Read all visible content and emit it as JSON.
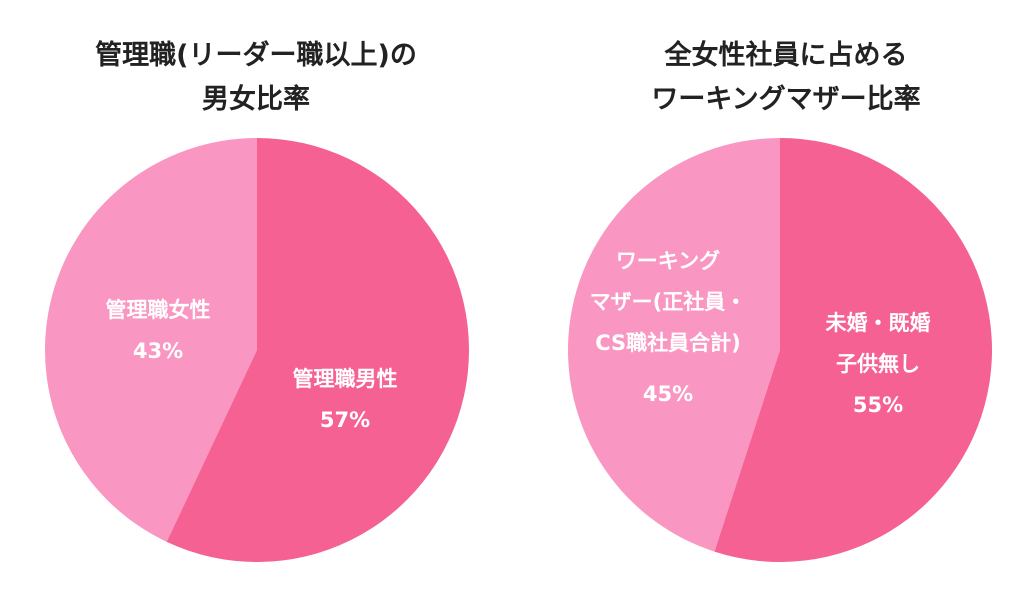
{
  "colors": {
    "female_slice": "#f997c2",
    "male_slice": "#f46192",
    "title_text": "#222222",
    "label_text": "#ffffff"
  },
  "chart_data": [
    {
      "type": "pie",
      "title_lines": [
        "管理職(リーダー職以上)の",
        "男女比率"
      ],
      "slices": [
        {
          "label_lines": [
            "管理職女性"
          ],
          "value_text": "43%",
          "value": 43,
          "color": "#f997c2"
        },
        {
          "label_lines": [
            "管理職男性"
          ],
          "value_text": "57%",
          "value": 57,
          "color": "#f46192"
        }
      ]
    },
    {
      "type": "pie",
      "title_lines": [
        "全女性社員に占める",
        "ワーキングマザー比率"
      ],
      "slices": [
        {
          "label_lines": [
            "ワーキング",
            "マザー(正社員・",
            "CS職社員合計)"
          ],
          "value_text": "45%",
          "value": 45,
          "color": "#f997c2"
        },
        {
          "label_lines": [
            "未婚・既婚",
            "子供無し"
          ],
          "value_text": "55%",
          "value": 55,
          "color": "#f46192"
        }
      ]
    }
  ]
}
